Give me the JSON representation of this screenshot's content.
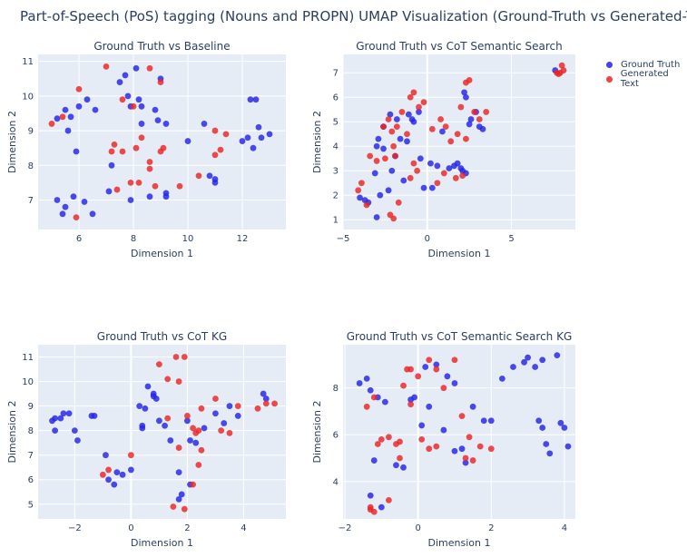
{
  "title": "Part-of-Speech (PoS) tagging (Nouns and PROPN) UMAP Visualization (Ground-Truth vs Generated-Text)",
  "legend": {
    "items": [
      {
        "name": "Ground Truth",
        "color": "#2323e6"
      },
      {
        "name": "Generated Text",
        "color": "#ea2424"
      }
    ]
  },
  "chart_data": [
    {
      "type": "scatter",
      "title": "Ground Truth vs Baseline",
      "xlabel": "Dimension 1",
      "ylabel": "Dimension 2",
      "xlim": [
        4.5,
        13.6
      ],
      "ylim": [
        6.15,
        11.2
      ],
      "xticks": [
        6,
        8,
        10,
        12
      ],
      "yticks": [
        7,
        8,
        9,
        10,
        11
      ],
      "zero_x": false,
      "zero_y": false,
      "series": [
        {
          "name": "Ground Truth",
          "x": [
            5.7,
            6.0,
            6.3,
            6.6,
            5.5,
            5.2,
            5.6,
            5.9,
            7.5,
            7.7,
            7.8,
            7.9,
            8.2,
            8.3,
            8.8,
            9.0,
            9.2,
            8.9,
            10.0,
            10.6,
            11.0,
            10.8,
            11.0,
            12.3,
            12.5,
            12.2,
            12.6,
            13.0,
            12.7,
            12.0,
            12.4,
            8.1,
            8.3,
            7.9,
            9.2,
            8.6,
            9.2,
            7.2,
            7.1,
            5.2,
            5.5,
            5.8,
            6.2,
            5.4,
            6.5
          ],
          "y": [
            9.4,
            9.7,
            9.9,
            9.6,
            9.6,
            9.35,
            9.0,
            8.4,
            10.4,
            10.6,
            10.0,
            9.7,
            9.9,
            9.2,
            9.6,
            10.5,
            9.2,
            9.3,
            8.7,
            9.2,
            7.6,
            7.7,
            7.5,
            9.9,
            9.9,
            8.8,
            9.1,
            8.9,
            8.8,
            8.7,
            8.5,
            10.8,
            9.7,
            7.0,
            7.2,
            7.1,
            7.1,
            8.0,
            7.25,
            7.0,
            6.8,
            7.1,
            6.95,
            6.6,
            6.6
          ]
        },
        {
          "name": "Generated Text",
          "x": [
            5.0,
            5.4,
            6.0,
            7.0,
            8.6,
            9.0,
            7.3,
            7.6,
            8.1,
            8.0,
            8.3,
            8.6,
            9.0,
            7.4,
            7.9,
            9.1,
            9.7,
            10.4,
            11.0,
            11.2,
            11.0,
            11.4,
            5.9,
            7.6,
            7.2,
            8.6,
            8.2,
            8.8
          ],
          "y": [
            9.2,
            9.4,
            10.2,
            10.85,
            10.8,
            10.4,
            8.6,
            9.9,
            8.5,
            9.7,
            8.8,
            8.1,
            8.4,
            7.3,
            7.5,
            8.5,
            7.4,
            7.7,
            8.3,
            8.45,
            9.0,
            8.9,
            6.5,
            8.4,
            8.4,
            7.9,
            7.5,
            7.4
          ]
        }
      ]
    },
    {
      "type": "scatter",
      "title": "Ground Truth vs CoT Semantic Search",
      "xlabel": "Dimension 1",
      "ylabel": "Dimension 2",
      "xlim": [
        -5,
        8.8
      ],
      "ylim": [
        0.6,
        7.75
      ],
      "xticks": [
        -5,
        0,
        5
      ],
      "yticks": [
        1,
        2,
        3,
        4,
        5,
        6,
        7
      ],
      "zero_x": true,
      "zero_y": false,
      "series": [
        {
          "name": "Ground Truth",
          "x": [
            -4.0,
            -3.7,
            -3.5,
            -3.0,
            -2.9,
            -2.6,
            -2.2,
            -1.8,
            -1.6,
            -1.2,
            -0.8,
            -0.5,
            -0.4,
            -0.2,
            0.3,
            0.6,
            1.3,
            1.6,
            1.8,
            2.0,
            2.2,
            2.3,
            2.5,
            2.6,
            2.9,
            3.1,
            3.3,
            -1.9,
            -2.1,
            -2.6,
            -3.1,
            -2.8,
            -1.1,
            -0.9,
            0.2,
            -1.4,
            -2.3,
            -3.0,
            0.9,
            2.1,
            2.3,
            7.6
          ],
          "y": [
            1.9,
            1.8,
            1.7,
            4.0,
            4.3,
            4.8,
            5.3,
            5.1,
            4.3,
            4.2,
            5.0,
            5.4,
            3.5,
            2.3,
            2.3,
            3.2,
            3.1,
            3.2,
            3.3,
            3.1,
            6.2,
            6.0,
            4.9,
            5.1,
            5.4,
            4.8,
            4.7,
            3.6,
            3.0,
            3.9,
            2.9,
            2.0,
            5.3,
            5.1,
            3.3,
            2.6,
            2.2,
            1.1,
            4.6,
            3.0,
            2.9,
            7.1
          ]
        },
        {
          "name": "Generated Text",
          "x": [
            -4.1,
            -3.9,
            -3.6,
            -3.4,
            -3.0,
            -2.6,
            -2.3,
            -2.1,
            -2.0,
            -1.8,
            -1.5,
            -1.2,
            -1.0,
            -0.8,
            -0.5,
            -0.2,
            0.3,
            0.8,
            1.1,
            1.4,
            1.8,
            2.0,
            2.3,
            2.5,
            2.8,
            3.1,
            3.5,
            -2.2,
            -2.0,
            -1.7,
            -1.0,
            -0.8,
            0.6,
            1.0,
            2.1,
            2.3,
            -2.5,
            -1.9,
            7.7,
            7.9,
            8.0,
            8.1,
            7.8,
            1.7,
            -0.6
          ],
          "y": [
            2.2,
            2.5,
            1.6,
            3.6,
            3.4,
            4.8,
            5.1,
            4.6,
            4.0,
            4.8,
            5.4,
            4.5,
            6.0,
            6.2,
            5.6,
            5.8,
            4.7,
            5.1,
            4.8,
            4.2,
            4.5,
            5.6,
            6.6,
            6.7,
            5.4,
            5.1,
            5.4,
            1.2,
            1.05,
            1.7,
            2.7,
            3.3,
            2.5,
            2.9,
            2.8,
            4.3,
            3.5,
            3.6,
            7.0,
            7.0,
            7.3,
            7.1,
            6.95,
            2.7,
            3.0
          ]
        }
      ]
    },
    {
      "type": "scatter",
      "title": "Ground Truth vs CoT KG",
      "xlabel": "Dimension 1",
      "ylabel": "Dimension 2",
      "xlim": [
        -3.3,
        5.5
      ],
      "ylim": [
        4.4,
        11.5
      ],
      "xticks": [
        -2,
        0,
        2,
        4
      ],
      "yticks": [
        5,
        6,
        7,
        8,
        9,
        10,
        11
      ],
      "zero_x": true,
      "zero_y": false,
      "series": [
        {
          "name": "Ground Truth",
          "x": [
            -2.8,
            -2.7,
            -2.5,
            -2.4,
            -2.0,
            -1.9,
            -1.4,
            -1.3,
            -2.7,
            -0.8,
            -0.6,
            -0.3,
            -0.5,
            0.0,
            0.4,
            0.5,
            0.6,
            0.8,
            0.9,
            1.0,
            1.2,
            1.4,
            1.7,
            1.8,
            2.0,
            2.1,
            2.3,
            2.6,
            3.0,
            3.3,
            3.5,
            3.8,
            4.7,
            4.8,
            0.3,
            0.4,
            0.8,
            -0.9,
            1.7,
            2.1,
            -2.2
          ],
          "y": [
            8.4,
            8.5,
            8.5,
            8.7,
            8.0,
            7.6,
            8.6,
            8.6,
            8.0,
            6.0,
            5.8,
            6.2,
            6.3,
            6.4,
            8.1,
            8.9,
            9.8,
            9.5,
            9.3,
            8.4,
            8.2,
            7.6,
            5.2,
            5.4,
            8.4,
            7.6,
            7.5,
            8.1,
            8.7,
            8.3,
            9.0,
            8.6,
            9.5,
            9.3,
            9.0,
            8.2,
            9.4,
            7.0,
            6.3,
            5.8,
            8.7
          ]
        },
        {
          "name": "Generated Text",
          "x": [
            -1.0,
            -0.8,
            0.0,
            1.0,
            1.3,
            1.6,
            1.7,
            1.9,
            2.0,
            2.2,
            2.3,
            2.4,
            2.5,
            3.0,
            3.2,
            3.5,
            3.8,
            4.5,
            4.8,
            5.1,
            1.5,
            1.9,
            2.2,
            2.4,
            1.3,
            1.7,
            2.5
          ],
          "y": [
            6.2,
            6.4,
            7.0,
            10.7,
            10.1,
            11.0,
            10.0,
            11.0,
            8.6,
            8.1,
            7.9,
            8.0,
            7.2,
            9.3,
            8.0,
            7.9,
            9.0,
            8.9,
            9.1,
            9.1,
            4.9,
            4.8,
            5.8,
            6.6,
            8.5,
            7.3,
            8.9
          ]
        }
      ]
    },
    {
      "type": "scatter",
      "title": "Ground Truth vs CoT Semantic Search KG",
      "xlabel": "Dimension 1",
      "ylabel": "Dimension 2",
      "xlim": [
        -2.05,
        4.3
      ],
      "ylim": [
        2.4,
        9.85
      ],
      "xticks": [
        -2,
        0,
        2,
        4
      ],
      "yticks": [
        4,
        6,
        8
      ],
      "zero_x": true,
      "zero_y": false,
      "series": [
        {
          "name": "Ground Truth",
          "x": [
            -1.6,
            -1.4,
            -1.3,
            -1.1,
            -0.9,
            -0.6,
            -0.4,
            -0.1,
            0.2,
            0.3,
            0.5,
            0.8,
            1.0,
            1.2,
            1.3,
            1.5,
            1.8,
            2.0,
            2.3,
            2.6,
            2.9,
            3.0,
            3.2,
            3.4,
            3.5,
            3.6,
            3.8,
            3.9,
            4.0,
            4.1,
            3.3,
            3.4,
            -0.2,
            -1.2,
            -1.0,
            0.1,
            1.0,
            -1.3,
            0.7
          ],
          "y": [
            8.2,
            8.4,
            7.9,
            7.6,
            7.4,
            4.7,
            4.6,
            7.6,
            8.9,
            7.2,
            9.0,
            8.5,
            8.2,
            5.4,
            4.8,
            7.2,
            6.6,
            6.6,
            8.4,
            8.9,
            9.1,
            9.3,
            8.9,
            9.2,
            5.6,
            5.2,
            9.4,
            6.5,
            6.3,
            5.5,
            6.6,
            6.3,
            7.5,
            4.9,
            2.9,
            6.4,
            5.3,
            3.4,
            6.2
          ]
        },
        {
          "name": "Generated Text",
          "x": [
            -1.4,
            -1.2,
            -1.1,
            -1.0,
            -0.8,
            -0.6,
            -0.4,
            -0.3,
            -0.2,
            0.0,
            0.3,
            0.5,
            0.7,
            1.0,
            1.2,
            1.4,
            1.7,
            2.0,
            -0.5,
            -0.8,
            -0.2,
            0.3,
            0.5,
            1.3,
            1.5,
            -1.3,
            -1.2,
            -1.3,
            -0.5,
            0.1
          ],
          "y": [
            7.2,
            7.6,
            5.6,
            5.8,
            5.9,
            5.6,
            8.1,
            8.8,
            8.8,
            8.5,
            9.2,
            8.8,
            8.0,
            9.2,
            6.8,
            5.9,
            5.5,
            5.4,
            5.7,
            3.2,
            7.3,
            5.4,
            5.5,
            5.0,
            4.9,
            2.8,
            2.7,
            2.9,
            5.0,
            5.8
          ]
        }
      ]
    }
  ]
}
